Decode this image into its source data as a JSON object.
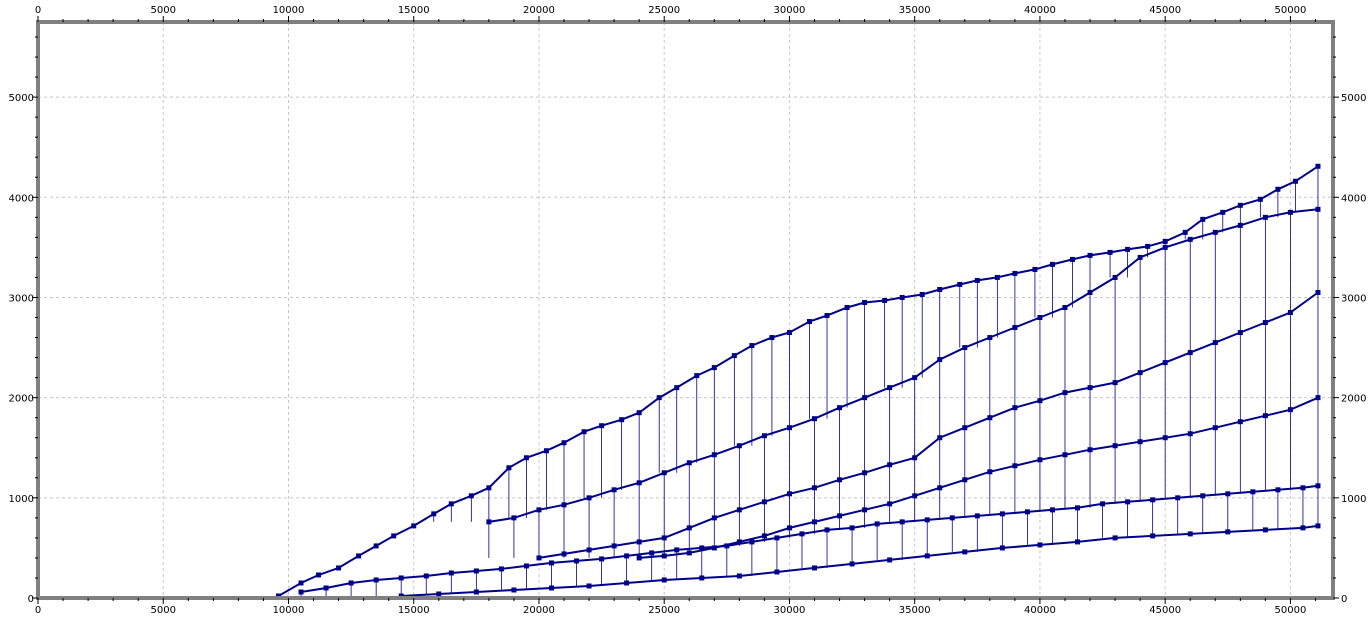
{
  "chart_data": {
    "type": "scatter",
    "title": "",
    "xlabel": "",
    "ylabel": "",
    "xlim": [
      0,
      51700
    ],
    "ylim": [
      0,
      5750
    ],
    "x_ticks": [
      0,
      5000,
      10000,
      15000,
      20000,
      25000,
      30000,
      35000,
      40000,
      45000,
      50000
    ],
    "y_ticks": [
      0,
      1000,
      2000,
      3000,
      4000,
      5000
    ],
    "x_tick_labels": [
      "0",
      "5000",
      "10000",
      "15000",
      "20000",
      "25000",
      "30000",
      "35000",
      "40000",
      "45000",
      "50000"
    ],
    "y_tick_labels": [
      "0",
      "1000",
      "2000",
      "3000",
      "4000",
      "5000"
    ],
    "grid": true,
    "axes_on_all_sides": true,
    "marker": "square",
    "connected_by_vertical_lines": true,
    "colors": {
      "series": "#00008B",
      "grid": "#c8c8c8",
      "frame": "#808080",
      "background": "#ffffff"
    },
    "series": [
      {
        "band": "upper",
        "x": [
          9600,
          10500,
          11200,
          12000,
          12800,
          13500,
          14200,
          15000,
          15800,
          16500,
          17300,
          18000,
          18800,
          19500,
          20300,
          21000,
          21800,
          22500,
          23300,
          24000,
          24800,
          25500,
          26300,
          27000,
          27800,
          28500,
          29300,
          30000,
          30800,
          31500,
          32300,
          33000,
          33800,
          34500,
          35300,
          36000,
          36800,
          37500,
          38300,
          39000,
          39800,
          40500,
          41300,
          42000,
          42800,
          43500,
          44300,
          45000,
          45800,
          46500,
          47300,
          48000,
          48800,
          49500,
          50200,
          51100
        ],
        "y": [
          20,
          150,
          230,
          300,
          420,
          520,
          620,
          720,
          840,
          940,
          1020,
          1100,
          1300,
          1400,
          1470,
          1550,
          1660,
          1720,
          1780,
          1850,
          2000,
          2100,
          2220,
          2300,
          2420,
          2520,
          2600,
          2650,
          2760,
          2820,
          2900,
          2950,
          2970,
          3000,
          3030,
          3080,
          3130,
          3170,
          3200,
          3240,
          3280,
          3330,
          3380,
          3420,
          3450,
          3480,
          3510,
          3560,
          3650,
          3780,
          3850,
          3920,
          3980,
          4080,
          4160,
          4310
        ]
      },
      {
        "band": "upper-middle",
        "x": [
          18000,
          19000,
          20000,
          21000,
          22000,
          23000,
          24000,
          25000,
          26000,
          27000,
          28000,
          29000,
          30000,
          31000,
          32000,
          33000,
          34000,
          35000,
          36000,
          37000,
          38000,
          39000,
          40000,
          41000,
          42000,
          43000,
          44000,
          45000,
          46000,
          47000,
          48000,
          49000,
          50000,
          51100
        ],
        "y": [
          760,
          800,
          880,
          930,
          1000,
          1080,
          1150,
          1250,
          1350,
          1430,
          1520,
          1620,
          1700,
          1790,
          1900,
          2000,
          2100,
          2200,
          2380,
          2500,
          2600,
          2700,
          2800,
          2900,
          3050,
          3200,
          3400,
          3500,
          3580,
          3650,
          3720,
          3800,
          3850,
          3880
        ]
      },
      {
        "band": "middle",
        "x": [
          20000,
          21000,
          22000,
          23000,
          24000,
          25000,
          26000,
          27000,
          28000,
          29000,
          30000,
          31000,
          32000,
          33000,
          34000,
          35000,
          36000,
          37000,
          38000,
          39000,
          40000,
          41000,
          42000,
          43000,
          44000,
          45000,
          46000,
          47000,
          48000,
          49000,
          50000,
          51100
        ],
        "y": [
          400,
          440,
          480,
          520,
          560,
          600,
          700,
          800,
          880,
          960,
          1040,
          1100,
          1180,
          1250,
          1330,
          1400,
          1600,
          1700,
          1800,
          1900,
          1970,
          2050,
          2100,
          2150,
          2250,
          2350,
          2450,
          2550,
          2650,
          2750,
          2850,
          3050
        ]
      },
      {
        "band": "lower-middle",
        "x": [
          24000,
          25000,
          26000,
          27000,
          28000,
          29000,
          30000,
          31000,
          32000,
          33000,
          34000,
          35000,
          36000,
          37000,
          38000,
          39000,
          40000,
          41000,
          42000,
          43000,
          44000,
          45000,
          46000,
          47000,
          48000,
          49000,
          50000,
          51100
        ],
        "y": [
          400,
          420,
          450,
          500,
          560,
          620,
          700,
          760,
          820,
          880,
          940,
          1020,
          1100,
          1180,
          1260,
          1320,
          1380,
          1430,
          1480,
          1520,
          1560,
          1600,
          1640,
          1700,
          1760,
          1820,
          1880,
          2000
        ]
      },
      {
        "band": "lower",
        "x": [
          10500,
          11500,
          12500,
          13500,
          14500,
          15500,
          16500,
          17500,
          18500,
          19500,
          20500,
          21500,
          22500,
          23500,
          24500,
          25500,
          26500,
          27500,
          28500,
          29500,
          30500,
          31500,
          32500,
          33500,
          34500,
          35500,
          36500,
          37500,
          38500,
          39500,
          40500,
          41500,
          42500,
          43500,
          44500,
          45500,
          46500,
          47500,
          48500,
          49500,
          50500,
          51100
        ],
        "y": [
          60,
          100,
          150,
          180,
          200,
          220,
          250,
          270,
          290,
          320,
          350,
          370,
          390,
          420,
          450,
          480,
          500,
          520,
          560,
          600,
          640,
          680,
          700,
          740,
          760,
          780,
          800,
          820,
          840,
          860,
          880,
          900,
          940,
          960,
          980,
          1000,
          1020,
          1040,
          1060,
          1080,
          1100,
          1120
        ]
      },
      {
        "band": "bottom",
        "x": [
          14500,
          16000,
          17500,
          19000,
          20500,
          22000,
          23500,
          25000,
          26500,
          28000,
          29500,
          31000,
          32500,
          34000,
          35500,
          37000,
          38500,
          40000,
          41500,
          43000,
          44500,
          46000,
          47500,
          49000,
          50500,
          51100
        ],
        "y": [
          20,
          40,
          60,
          80,
          100,
          120,
          150,
          180,
          200,
          220,
          260,
          300,
          340,
          380,
          420,
          460,
          500,
          530,
          560,
          600,
          620,
          640,
          660,
          680,
          700,
          720
        ]
      }
    ]
  }
}
